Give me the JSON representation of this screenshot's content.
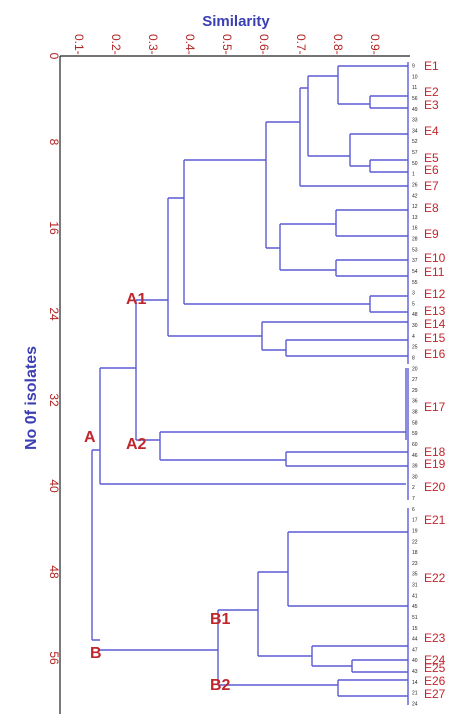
{
  "axes": {
    "top_title": "Similarity",
    "left_title": "No 0f isolates",
    "top_ticks": [
      "0.1-",
      "0.2-",
      "0.3-",
      "0.4-",
      "0.5-",
      "0.6-",
      "0.7-",
      "0.8-",
      "0.9-"
    ],
    "left_ticks": [
      "0",
      "8",
      "16",
      "24",
      "32",
      "40",
      "48",
      "56"
    ]
  },
  "clusters": [
    "A",
    "A1",
    "A2",
    "B",
    "B1",
    "B2"
  ],
  "groups": [
    "E1",
    "E2",
    "E3",
    "E4",
    "E5",
    "E6",
    "E7",
    "E8",
    "E9",
    "E10",
    "E11",
    "E12",
    "E13",
    "E14",
    "E15",
    "E16",
    "E17",
    "E18",
    "E19",
    "E20",
    "E21",
    "E22",
    "E23",
    "E24",
    "E25",
    "E26",
    "E27"
  ],
  "leaves": [
    "9",
    "10",
    "11",
    "56",
    "49",
    "33",
    "34",
    "52",
    "57",
    "50",
    "1",
    "26",
    "42",
    "12",
    "13",
    "16",
    "28",
    "53",
    "37",
    "54",
    "55",
    "3",
    "5",
    "48",
    "30",
    "4",
    "25",
    "8",
    "20",
    "27",
    "29",
    "36",
    "38",
    "58",
    "59",
    "60",
    "46",
    "39",
    "30",
    "2",
    "7",
    "6",
    "17",
    "19",
    "22",
    "18",
    "23",
    "35",
    "31",
    "41",
    "45",
    "51",
    "15",
    "44",
    "47",
    "40",
    "43",
    "14",
    "21",
    "24"
  ],
  "colors": {
    "branch": "#5b5bd6",
    "labels": "#c0262d",
    "axis_title": "#3b3fb4"
  }
}
